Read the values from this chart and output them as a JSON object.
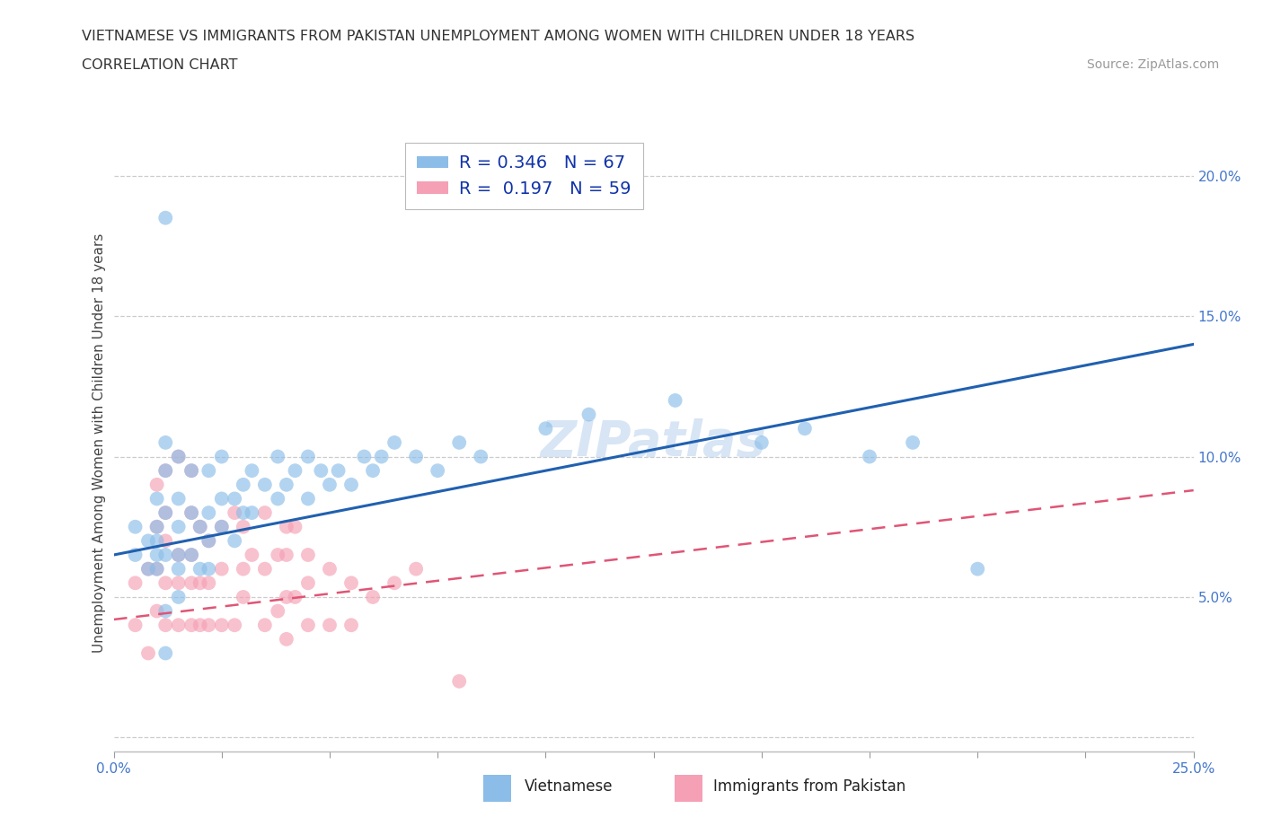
{
  "title_line1": "VIETNAMESE VS IMMIGRANTS FROM PAKISTAN UNEMPLOYMENT AMONG WOMEN WITH CHILDREN UNDER 18 YEARS",
  "title_line2": "CORRELATION CHART",
  "source": "Source: ZipAtlas.com",
  "ylabel": "Unemployment Among Women with Children Under 18 years",
  "xlim": [
    0.0,
    0.25
  ],
  "ylim": [
    -0.005,
    0.215
  ],
  "grid_color": "#cccccc",
  "background_color": "#ffffff",
  "vietnamese_color": "#8bbde8",
  "pakistan_color": "#f5a0b5",
  "vietnamese_line_color": "#2060b0",
  "pakistan_line_color": "#e05575",
  "pakistan_line_dashed": true,
  "R_vietnamese": 0.346,
  "N_vietnamese": 67,
  "R_pakistan": 0.197,
  "N_pakistan": 59,
  "legend_label_vietnamese": "Vietnamese",
  "legend_label_pakistan": "Immigrants from Pakistan",
  "watermark": "ZIPatlas",
  "viet_line_x0": 0.0,
  "viet_line_y0": 0.065,
  "viet_line_x1": 0.25,
  "viet_line_y1": 0.14,
  "pak_line_x0": 0.0,
  "pak_line_y0": 0.042,
  "pak_line_x1": 0.25,
  "pak_line_y1": 0.088,
  "vietnamese_x": [
    0.005,
    0.005,
    0.008,
    0.008,
    0.01,
    0.01,
    0.01,
    0.01,
    0.01,
    0.012,
    0.012,
    0.012,
    0.012,
    0.012,
    0.012,
    0.012,
    0.015,
    0.015,
    0.015,
    0.015,
    0.015,
    0.015,
    0.018,
    0.018,
    0.018,
    0.02,
    0.02,
    0.022,
    0.022,
    0.022,
    0.022,
    0.025,
    0.025,
    0.025,
    0.028,
    0.028,
    0.03,
    0.03,
    0.032,
    0.032,
    0.035,
    0.038,
    0.038,
    0.04,
    0.042,
    0.045,
    0.045,
    0.048,
    0.05,
    0.052,
    0.055,
    0.058,
    0.06,
    0.062,
    0.065,
    0.07,
    0.075,
    0.08,
    0.085,
    0.1,
    0.11,
    0.13,
    0.15,
    0.16,
    0.175,
    0.185,
    0.2
  ],
  "vietnamese_y": [
    0.065,
    0.075,
    0.06,
    0.07,
    0.06,
    0.065,
    0.07,
    0.075,
    0.085,
    0.03,
    0.045,
    0.065,
    0.08,
    0.095,
    0.105,
    0.185,
    0.05,
    0.06,
    0.065,
    0.075,
    0.085,
    0.1,
    0.065,
    0.08,
    0.095,
    0.06,
    0.075,
    0.06,
    0.07,
    0.08,
    0.095,
    0.075,
    0.085,
    0.1,
    0.07,
    0.085,
    0.08,
    0.09,
    0.08,
    0.095,
    0.09,
    0.085,
    0.1,
    0.09,
    0.095,
    0.085,
    0.1,
    0.095,
    0.09,
    0.095,
    0.09,
    0.1,
    0.095,
    0.1,
    0.105,
    0.1,
    0.095,
    0.105,
    0.1,
    0.11,
    0.115,
    0.12,
    0.105,
    0.11,
    0.1,
    0.105,
    0.06
  ],
  "pakistan_x": [
    0.005,
    0.005,
    0.008,
    0.008,
    0.01,
    0.01,
    0.01,
    0.01,
    0.012,
    0.012,
    0.012,
    0.012,
    0.012,
    0.015,
    0.015,
    0.015,
    0.015,
    0.018,
    0.018,
    0.018,
    0.018,
    0.018,
    0.02,
    0.02,
    0.02,
    0.022,
    0.022,
    0.022,
    0.025,
    0.025,
    0.025,
    0.028,
    0.028,
    0.03,
    0.03,
    0.03,
    0.032,
    0.035,
    0.035,
    0.035,
    0.038,
    0.038,
    0.04,
    0.04,
    0.04,
    0.04,
    0.042,
    0.042,
    0.045,
    0.045,
    0.045,
    0.05,
    0.05,
    0.055,
    0.055,
    0.06,
    0.065,
    0.07,
    0.08
  ],
  "pakistan_y": [
    0.04,
    0.055,
    0.03,
    0.06,
    0.045,
    0.06,
    0.075,
    0.09,
    0.04,
    0.055,
    0.07,
    0.08,
    0.095,
    0.04,
    0.055,
    0.065,
    0.1,
    0.04,
    0.055,
    0.065,
    0.08,
    0.095,
    0.04,
    0.055,
    0.075,
    0.04,
    0.055,
    0.07,
    0.04,
    0.06,
    0.075,
    0.04,
    0.08,
    0.05,
    0.06,
    0.075,
    0.065,
    0.04,
    0.06,
    0.08,
    0.045,
    0.065,
    0.035,
    0.05,
    0.065,
    0.075,
    0.05,
    0.075,
    0.04,
    0.055,
    0.065,
    0.04,
    0.06,
    0.04,
    0.055,
    0.05,
    0.055,
    0.06,
    0.02
  ]
}
